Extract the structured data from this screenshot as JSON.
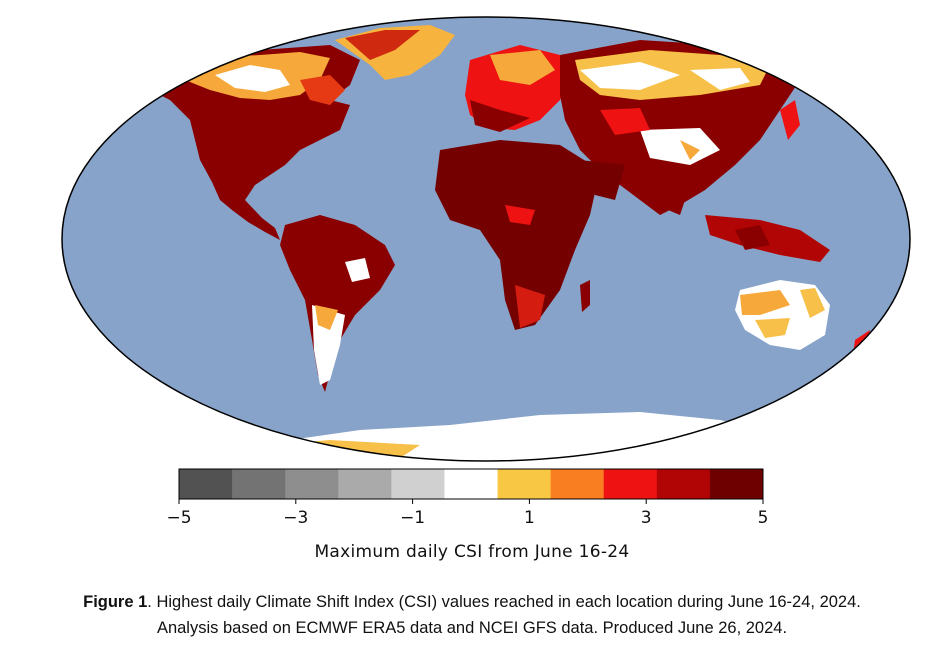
{
  "map": {
    "projection": "Robinson",
    "ocean_color": "#87a3c9",
    "land_note": "Global map of maximum daily CSI"
  },
  "colorbar": {
    "bins": [
      "#525252",
      "#737373",
      "#8e8e8e",
      "#aaaaaa",
      "#d0d0d0",
      "#ffffff",
      "#f8c844",
      "#f97d21",
      "#ee1212",
      "#b10404",
      "#6f0000"
    ],
    "ticks": [
      "−5",
      "−3",
      "−1",
      "1",
      "3",
      "5"
    ],
    "label": "Maximum daily CSI from June 16-24"
  },
  "caption": {
    "bold": "Figure 1",
    "line1_rest": ". Highest daily Climate Shift Index (CSI) values reached in each location during June 16-24, 2024.",
    "line2": "Analysis based on ECMWF ERA5 data and NCEI GFS data. Produced June 26, 2024."
  }
}
